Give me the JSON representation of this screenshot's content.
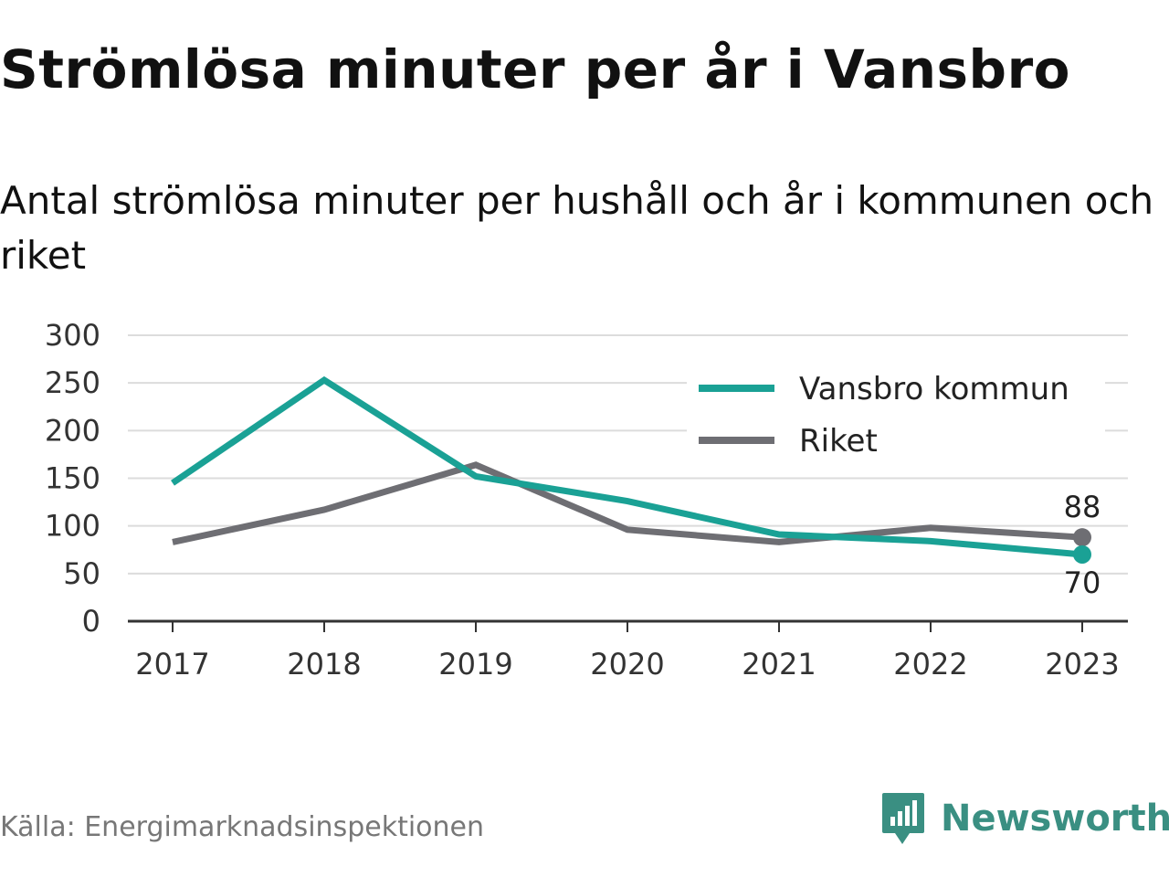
{
  "title": "Strömlösa minuter per år i Vansbro",
  "subtitle": "Antal strömlösa minuter per hushåll och år i kommunen och riket",
  "source": "Källa: Energimarknadsinspektionen",
  "brand": {
    "name": "Newsworthy",
    "icon": "newsworthy-logo-icon",
    "color": "#3a8f82"
  },
  "chart_data": {
    "type": "line",
    "x": [
      "2017",
      "2018",
      "2019",
      "2020",
      "2021",
      "2022",
      "2023"
    ],
    "ylim": [
      0,
      300
    ],
    "yticks": [
      "0",
      "50",
      "100",
      "150",
      "200",
      "250",
      "300"
    ],
    "grid": true,
    "legend_position": "top-right",
    "series": [
      {
        "name": "Vansbro kommun",
        "color": "#1aa195",
        "values": [
          145,
          253,
          152,
          126,
          91,
          84,
          70
        ],
        "end_label": "70",
        "end_label_position": "below"
      },
      {
        "name": "Riket",
        "color": "#6e6e73",
        "values": [
          83,
          117,
          164,
          96,
          83,
          98,
          88
        ],
        "end_label": "88",
        "end_label_position": "above"
      }
    ]
  }
}
